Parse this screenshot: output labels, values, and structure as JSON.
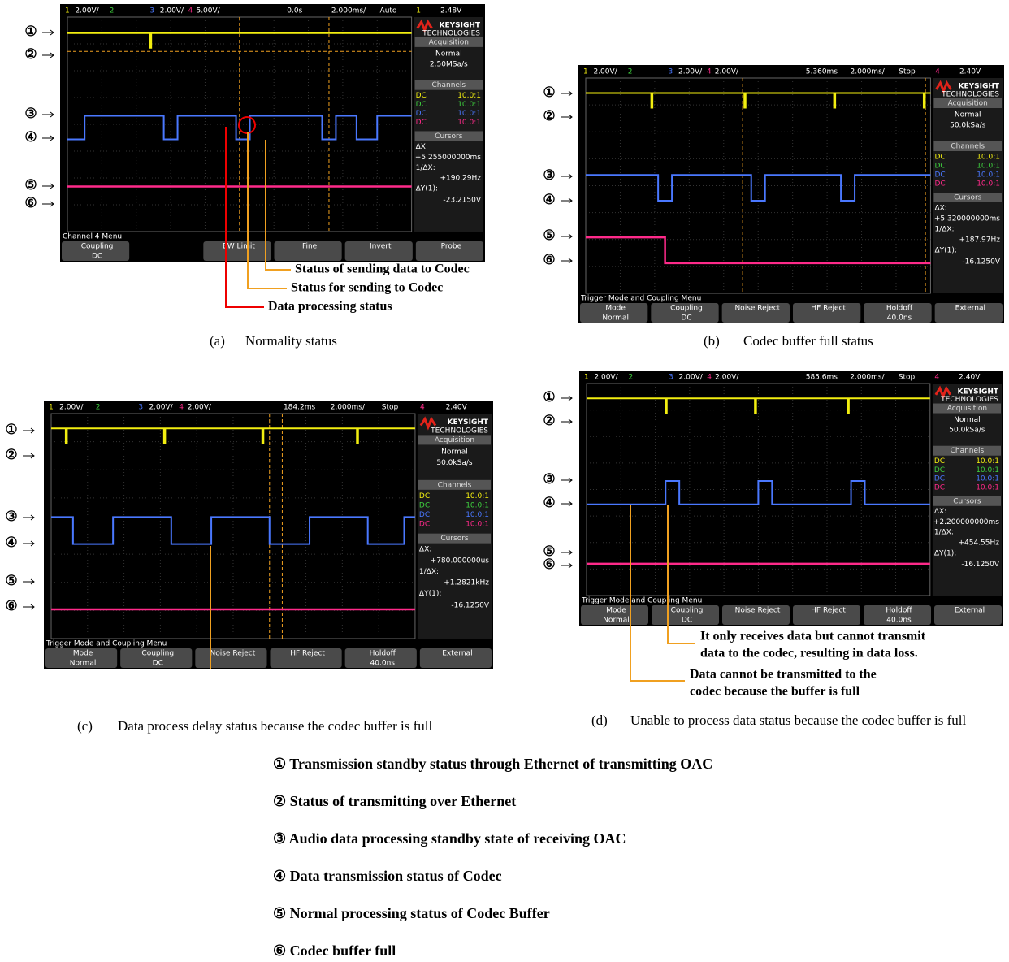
{
  "markers": [
    "①",
    "②",
    "③",
    "④",
    "⑤",
    "⑥"
  ],
  "panels": [
    {
      "top_bar": [
        "1",
        "2.00V/",
        "2",
        "3",
        "2.00V/",
        "4",
        "5.00V/",
        "0.0s",
        "2.000ms/",
        "Auto",
        "1",
        "2.48V"
      ],
      "brand": "KEYSIGHT",
      "brand_sub": "TECHNOLOGIES",
      "side": {
        "acq_title": "Acquisition",
        "acq_mode": "Normal",
        "acq_rate": "2.50MSa/s",
        "ch_title": "Channels",
        "channels": [
          {
            "coupling": "DC",
            "probe": "10.0:1"
          },
          {
            "coupling": "DC",
            "probe": "10.0:1"
          },
          {
            "coupling": "DC",
            "probe": "10.0:1"
          },
          {
            "coupling": "DC",
            "probe": "10.0:1"
          }
        ],
        "cur_title": "Cursors",
        "dx_label": "ΔX:",
        "dx": "+5.255000000ms",
        "inv_label": "1/ΔX:",
        "inv": "+190.29Hz",
        "dy_label": "ΔY(1):",
        "dy": "-23.2150V"
      },
      "menu_title": "Channel 4 Menu",
      "softkeys": [
        {
          "label": "Coupling",
          "value": "DC"
        },
        {
          "label": "BW Limit"
        },
        {
          "label": "Fine"
        },
        {
          "label": "Invert"
        },
        {
          "label": "Probe"
        }
      ],
      "annotations": [
        {
          "lines": [
            "Status of sending data to Codec"
          ]
        },
        {
          "lines": [
            "Status for sending to Codec"
          ]
        },
        {
          "lines": [
            "Data processing status"
          ]
        }
      ],
      "caption_label": "(a)",
      "caption": "Normality status"
    },
    {
      "top_bar": [
        "1",
        "2.00V/",
        "2",
        "3",
        "2.00V/",
        "4",
        "2.00V/",
        "5.360ms",
        "2.000ms/",
        "Stop",
        "4",
        "2.40V"
      ],
      "brand": "KEYSIGHT",
      "brand_sub": "TECHNOLOGIES",
      "side": {
        "acq_title": "Acquisition",
        "acq_mode": "Normal",
        "acq_rate": "50.0kSa/s",
        "ch_title": "Channels",
        "channels": [
          {
            "coupling": "DC",
            "probe": "10.0:1"
          },
          {
            "coupling": "DC",
            "probe": "10.0:1"
          },
          {
            "coupling": "DC",
            "probe": "10.0:1"
          },
          {
            "coupling": "DC",
            "probe": "10.0:1"
          }
        ],
        "cur_title": "Cursors",
        "dx_label": "ΔX:",
        "dx": "+5.320000000ms",
        "inv_label": "1/ΔX:",
        "inv": "+187.97Hz",
        "dy_label": "ΔY(1):",
        "dy": "-16.1250V"
      },
      "menu_title": "Trigger Mode and Coupling Menu",
      "softkeys": [
        {
          "label": "Mode",
          "value": "Normal"
        },
        {
          "label": "Coupling",
          "value": "DC"
        },
        {
          "label": "Noise Reject"
        },
        {
          "label": "HF Reject"
        },
        {
          "label": "Holdoff",
          "value": "40.0ns"
        },
        {
          "label": "External"
        }
      ],
      "caption_label": "(b)",
      "caption": "Codec buffer full status"
    },
    {
      "top_bar": [
        "1",
        "2.00V/",
        "2",
        "3",
        "2.00V/",
        "4",
        "2.00V/",
        "184.2ms",
        "2.000ms/",
        "Stop",
        "4",
        "2.40V"
      ],
      "brand": "KEYSIGHT",
      "brand_sub": "TECHNOLOGIES",
      "side": {
        "acq_title": "Acquisition",
        "acq_mode": "Normal",
        "acq_rate": "50.0kSa/s",
        "ch_title": "Channels",
        "channels": [
          {
            "coupling": "DC",
            "probe": "10.0:1"
          },
          {
            "coupling": "DC",
            "probe": "10.0:1"
          },
          {
            "coupling": "DC",
            "probe": "10.0:1"
          },
          {
            "coupling": "DC",
            "probe": "10.0:1"
          }
        ],
        "cur_title": "Cursors",
        "dx_label": "ΔX:",
        "dx": "+780.000000us",
        "inv_label": "1/ΔX:",
        "inv": "+1.2821kHz",
        "dy_label": "ΔY(1):",
        "dy": "-16.1250V"
      },
      "menu_title": "Trigger Mode and Coupling Menu",
      "softkeys": [
        {
          "label": "Mode",
          "value": "Normal"
        },
        {
          "label": "Coupling",
          "value": "DC"
        },
        {
          "label": "Noise Reject"
        },
        {
          "label": "HF Reject"
        },
        {
          "label": "Holdoff",
          "value": "40.0ns"
        },
        {
          "label": "External"
        }
      ],
      "caption_label": "(c)",
      "caption": "Data process delay status because the codec buffer is full"
    },
    {
      "top_bar": [
        "1",
        "2.00V/",
        "2",
        "3",
        "2.00V/",
        "4",
        "2.00V/",
        "585.6ms",
        "2.000ms/",
        "Stop",
        "4",
        "2.40V"
      ],
      "brand": "KEYSIGHT",
      "brand_sub": "TECHNOLOGIES",
      "side": {
        "acq_title": "Acquisition",
        "acq_mode": "Normal",
        "acq_rate": "50.0kSa/s",
        "ch_title": "Channels",
        "channels": [
          {
            "coupling": "DC",
            "probe": "10.0:1"
          },
          {
            "coupling": "DC",
            "probe": "10.0:1"
          },
          {
            "coupling": "DC",
            "probe": "10.0:1"
          },
          {
            "coupling": "DC",
            "probe": "10.0:1"
          }
        ],
        "cur_title": "Cursors",
        "dx_label": "ΔX:",
        "dx": "+2.200000000ms",
        "inv_label": "1/ΔX:",
        "inv": "+454.55Hz",
        "dy_label": "ΔY(1):",
        "dy": "-16.1250V"
      },
      "menu_title": "Trigger Mode and Coupling Menu",
      "softkeys": [
        {
          "label": "Mode",
          "value": "Normal"
        },
        {
          "label": "Coupling",
          "value": "DC"
        },
        {
          "label": "Noise Reject"
        },
        {
          "label": "HF Reject"
        },
        {
          "label": "Holdoff",
          "value": "40.0ns"
        },
        {
          "label": "External"
        }
      ],
      "annotations": [
        {
          "lines": [
            "It only receives data but cannot transmit",
            "data to the codec, resulting in data loss."
          ]
        },
        {
          "lines": [
            "Data cannot be transmitted to the",
            "codec because the buffer is full"
          ]
        }
      ],
      "caption_label": "(d)",
      "caption": "Unable to process data status because the codec buffer is full"
    }
  ],
  "legend": [
    "① Transmission standby status through Ethernet of  transmitting OAC",
    "② Status of transmitting over Ethernet",
    "③ Audio data processing standby state of receiving OAC",
    "④ Data transmission status of Codec",
    "⑤ Normal processing status of Codec Buffer",
    "⑥ Codec buffer full"
  ]
}
